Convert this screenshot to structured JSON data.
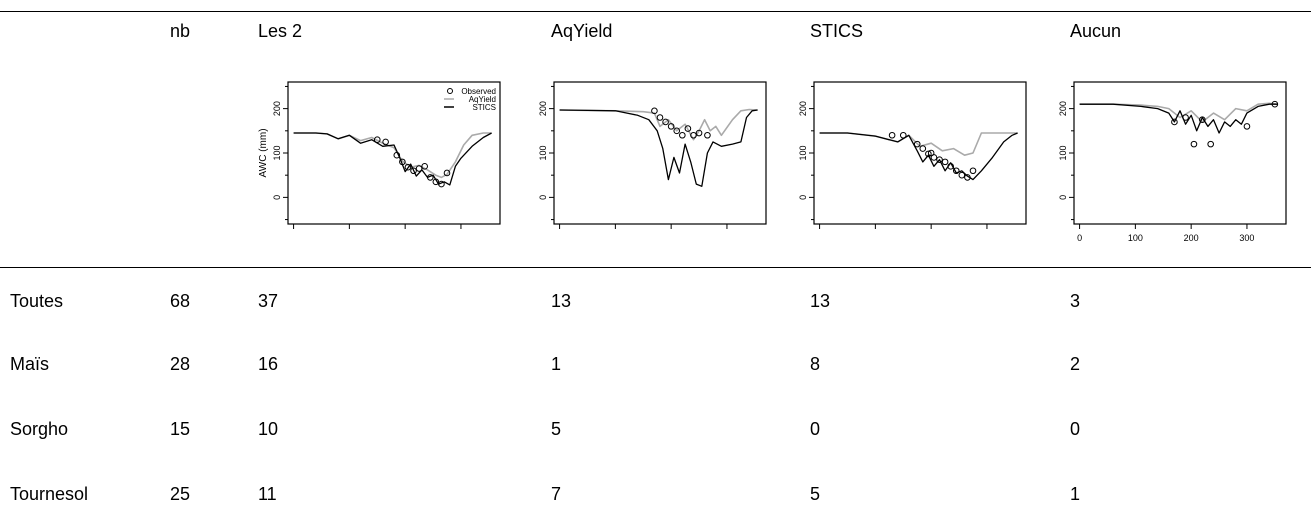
{
  "table": {
    "headers": [
      "",
      "nb",
      "Les 2",
      "AqYield",
      "STICS",
      "Aucun"
    ],
    "rows": [
      {
        "label": "Toutes",
        "nb": "68",
        "les2": "37",
        "aqyield": "13",
        "stics": "13",
        "aucun": "3"
      },
      {
        "label": "Maïs",
        "nb": "28",
        "les2": "16",
        "aqyield": "1",
        "stics": "8",
        "aucun": "2"
      },
      {
        "label": "Sorgho",
        "nb": "15",
        "les2": "10",
        "aqyield": "5",
        "stics": "0",
        "aucun": "0"
      },
      {
        "label": "Tournesol",
        "nb": "25",
        "les2": "11",
        "aqyield": "7",
        "stics": "5",
        "aucun": "1"
      }
    ]
  },
  "chart_data": [
    {
      "type": "line",
      "panel": "Les 2",
      "ylabel": "AWC (mm)",
      "yticks": [
        "0",
        "100",
        "200"
      ],
      "ylim": [
        -60,
        260
      ],
      "xlim": [
        -10,
        370
      ],
      "legend": {
        "placement": "top-right",
        "entries": [
          "Observed",
          "AqYield",
          "STICS"
        ]
      },
      "series": [
        {
          "name": "AqYield",
          "color": "#aaaaaa",
          "x": [
            0,
            40,
            60,
            80,
            100,
            120,
            140,
            160,
            180,
            195,
            210,
            225,
            240,
            255,
            265,
            275,
            290,
            305,
            320,
            340,
            355
          ],
          "y": [
            145,
            145,
            143,
            132,
            140,
            128,
            135,
            122,
            112,
            82,
            68,
            72,
            62,
            50,
            45,
            52,
            80,
            118,
            140,
            145,
            145
          ]
        },
        {
          "name": "STICS",
          "color": "#000000",
          "x": [
            0,
            40,
            60,
            80,
            100,
            120,
            140,
            160,
            180,
            190,
            200,
            210,
            220,
            230,
            240,
            250,
            260,
            270,
            280,
            290,
            300,
            320,
            340,
            355
          ],
          "y": [
            145,
            145,
            143,
            132,
            140,
            122,
            130,
            115,
            118,
            90,
            58,
            75,
            48,
            62,
            45,
            50,
            30,
            35,
            28,
            70,
            88,
            115,
            135,
            145
          ]
        }
      ],
      "observed": {
        "x": [
          150,
          165,
          185,
          195,
          205,
          215,
          225,
          235,
          245,
          255,
          265,
          275
        ],
        "y": [
          130,
          125,
          95,
          80,
          68,
          60,
          65,
          70,
          45,
          35,
          30,
          55
        ]
      }
    },
    {
      "type": "line",
      "panel": "AqYield",
      "yticks": [
        "0",
        "100",
        "200"
      ],
      "ylim": [
        -60,
        260
      ],
      "xlim": [
        -10,
        370
      ],
      "series": [
        {
          "name": "AqYield",
          "color": "#aaaaaa",
          "x": [
            0,
            50,
            100,
            150,
            170,
            180,
            195,
            210,
            225,
            240,
            250,
            260,
            270,
            280,
            290,
            310,
            325,
            340,
            355
          ],
          "y": [
            197,
            196,
            195,
            193,
            190,
            160,
            175,
            150,
            165,
            130,
            150,
            175,
            150,
            160,
            140,
            175,
            195,
            198,
            197
          ]
        },
        {
          "name": "STICS",
          "color": "#000000",
          "x": [
            0,
            50,
            100,
            140,
            160,
            175,
            185,
            195,
            205,
            215,
            225,
            235,
            245,
            255,
            265,
            275,
            290,
            310,
            325,
            335,
            345,
            355
          ],
          "y": [
            197,
            196,
            195,
            185,
            175,
            150,
            110,
            40,
            90,
            55,
            120,
            80,
            30,
            25,
            100,
            125,
            115,
            120,
            125,
            180,
            195,
            197
          ]
        }
      ],
      "observed": {
        "x": [
          170,
          180,
          190,
          200,
          210,
          220,
          230,
          240,
          250,
          265
        ],
        "y": [
          195,
          180,
          170,
          160,
          150,
          140,
          155,
          140,
          145,
          140
        ]
      }
    },
    {
      "type": "line",
      "panel": "STICS",
      "yticks": [
        "0",
        "100",
        "200"
      ],
      "ylim": [
        -60,
        260
      ],
      "xlim": [
        -10,
        370
      ],
      "series": [
        {
          "name": "AqYield",
          "color": "#aaaaaa",
          "x": [
            0,
            50,
            100,
            140,
            160,
            180,
            200,
            220,
            240,
            260,
            275,
            290,
            320,
            355
          ],
          "y": [
            145,
            145,
            138,
            125,
            140,
            115,
            122,
            105,
            110,
            95,
            100,
            145,
            145,
            145
          ]
        },
        {
          "name": "STICS",
          "color": "#000000",
          "x": [
            0,
            50,
            100,
            140,
            160,
            175,
            185,
            195,
            205,
            215,
            225,
            235,
            245,
            255,
            265,
            275,
            290,
            310,
            330,
            345,
            355
          ],
          "y": [
            145,
            145,
            138,
            125,
            140,
            105,
            80,
            95,
            70,
            85,
            60,
            78,
            55,
            60,
            48,
            40,
            60,
            90,
            125,
            140,
            145
          ]
        }
      ],
      "observed": {
        "x": [
          130,
          150,
          175,
          185,
          195,
          200,
          205,
          215,
          225,
          235,
          245,
          255,
          265,
          275
        ],
        "y": [
          140,
          140,
          120,
          110,
          98,
          100,
          90,
          85,
          80,
          70,
          60,
          50,
          45,
          60
        ]
      }
    },
    {
      "type": "line",
      "panel": "Aucun",
      "yticks": [
        "0",
        "100",
        "200"
      ],
      "xticks": [
        "0",
        "100",
        "200",
        "300"
      ],
      "xtick_values": [
        0,
        100,
        200,
        300
      ],
      "ylim": [
        -60,
        260
      ],
      "xlim": [
        -10,
        370
      ],
      "series": [
        {
          "name": "AqYield",
          "color": "#aaaaaa",
          "x": [
            0,
            60,
            110,
            140,
            160,
            180,
            200,
            220,
            240,
            260,
            280,
            300,
            320,
            340,
            355
          ],
          "y": [
            210,
            210,
            208,
            205,
            200,
            180,
            195,
            170,
            190,
            175,
            200,
            195,
            210,
            212,
            210
          ]
        },
        {
          "name": "STICS",
          "color": "#000000",
          "x": [
            0,
            60,
            110,
            140,
            160,
            170,
            180,
            190,
            200,
            210,
            220,
            230,
            240,
            250,
            260,
            270,
            280,
            290,
            300,
            320,
            340,
            355
          ],
          "y": [
            210,
            210,
            205,
            200,
            190,
            170,
            195,
            165,
            185,
            150,
            180,
            160,
            175,
            145,
            170,
            160,
            175,
            165,
            190,
            205,
            210,
            210
          ]
        }
      ],
      "observed": {
        "x": [
          170,
          190,
          205,
          220,
          235,
          300,
          350
        ],
        "y": [
          170,
          180,
          120,
          175,
          120,
          160,
          210
        ]
      }
    }
  ]
}
